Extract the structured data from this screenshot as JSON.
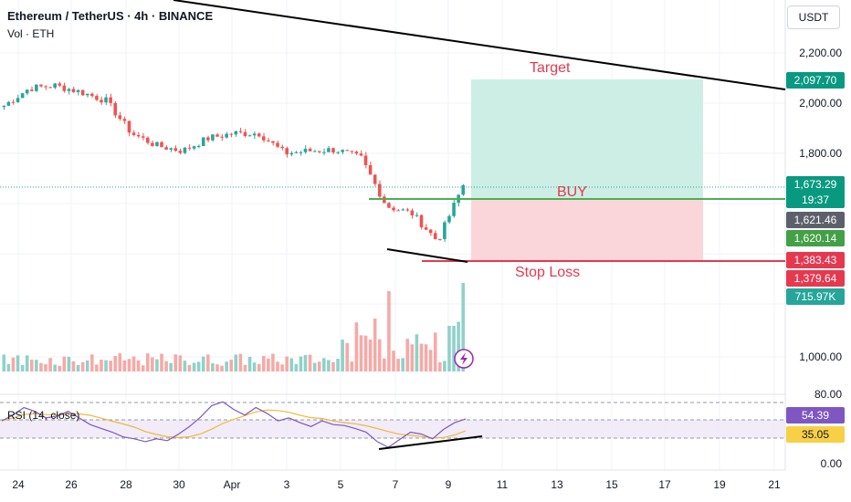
{
  "header": {
    "title": "Ethereum / TetherUS · 4h · BINANCE",
    "volume_label": "Vol · ETH",
    "rsi_label": "RSI (14, close)"
  },
  "currency_button": "USDT",
  "price_axis": [
    "2,200.00",
    "2,000.00",
    "1,800.00",
    "1,000.00"
  ],
  "rsi_axis": [
    "80.00",
    "0.00"
  ],
  "time_axis": [
    "24",
    "26",
    "28",
    "30",
    "Apr",
    "3",
    "5",
    "7",
    "9",
    "11",
    "13",
    "15",
    "17",
    "19",
    "21"
  ],
  "badges": {
    "target": "2,097.70",
    "last_price": "1,673.29",
    "countdown": "19:37",
    "price_b": "1,621.46",
    "price_c": "1,620.14",
    "stop_a": "1,383.43",
    "stop_b": "1,379.64",
    "volume": "715.97K",
    "rsi": "54.39",
    "rsi_ma": "35.05"
  },
  "annotations": {
    "target": "Target",
    "buy": "BUY",
    "stop": "Stop Loss"
  },
  "colors": {
    "up": "#26a69a",
    "down": "#ef5350",
    "profit_zone": "#cdeee5",
    "loss_zone": "#fad6da",
    "buy_line": "#4caf50",
    "stop_line": "#e53950",
    "rsi_line": "#7e57c2",
    "rsi_ma": "#f0b93b"
  },
  "chart_data": {
    "type": "candlestick",
    "symbol": "Ethereum / TetherUS",
    "timeframe": "4h",
    "exchange": "BINANCE",
    "currency": "USDT",
    "price_range": [
      980,
      2280
    ],
    "rsi_range": [
      0,
      80
    ],
    "key_levels": {
      "target": 2097.7,
      "entry": 1620.14,
      "stop_loss": 1383.43,
      "last_price": 1673.29
    },
    "price_path": [
      [
        "Mar 23",
        1990
      ],
      [
        "Mar 24",
        2060
      ],
      [
        "Mar 25",
        2070
      ],
      [
        "Mar 26",
        2045
      ],
      [
        "Mar 27",
        2010
      ],
      [
        "Mar 28",
        1880
      ],
      [
        "Mar 29",
        1830
      ],
      [
        "Mar 30",
        1810
      ],
      [
        "Mar 31",
        1860
      ],
      [
        "Apr 1",
        1880
      ],
      [
        "Apr 2",
        1880
      ],
      [
        "Apr 3",
        1800
      ],
      [
        "Apr 4",
        1810
      ],
      [
        "Apr 5",
        1815
      ],
      [
        "Apr 6",
        1780
      ],
      [
        "Apr 7",
        1590
      ],
      [
        "Apr 8",
        1560
      ],
      [
        "Apr 9",
        1450
      ],
      [
        "Apr 9.5",
        1673
      ]
    ],
    "volume_last": "715.97K",
    "rsi_last": 54.39,
    "rsi_ma_last": 35.05
  }
}
